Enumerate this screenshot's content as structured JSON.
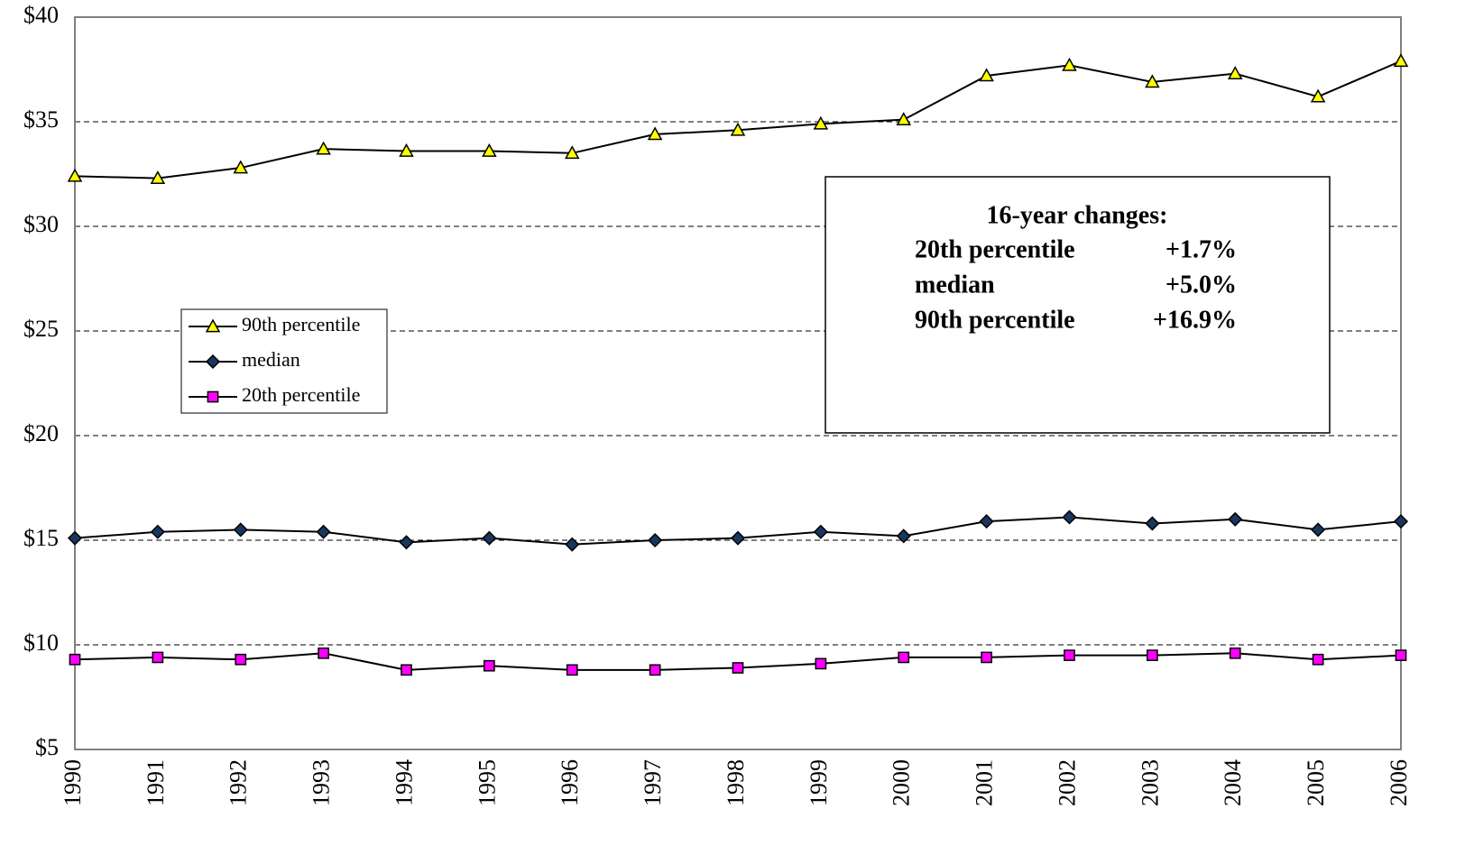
{
  "chart_data": {
    "type": "line",
    "categories": [
      "1990",
      "1991",
      "1992",
      "1993",
      "1994",
      "1995",
      "1996",
      "1997",
      "1998",
      "1999",
      "2000",
      "2001",
      "2002",
      "2003",
      "2004",
      "2005",
      "2006"
    ],
    "series": [
      {
        "name": "90th percentile",
        "color": "#ffff00",
        "marker": "triangle",
        "values": [
          32.4,
          32.3,
          32.8,
          33.7,
          33.6,
          33.6,
          33.5,
          34.4,
          34.6,
          34.9,
          35.1,
          37.2,
          37.7,
          36.9,
          37.3,
          36.2,
          37.9
        ]
      },
      {
        "name": "median",
        "color": "#17375e",
        "marker": "diamond",
        "values": [
          15.1,
          15.4,
          15.5,
          15.4,
          14.9,
          15.1,
          14.8,
          15.0,
          15.1,
          15.4,
          15.2,
          15.9,
          16.1,
          15.8,
          16.0,
          15.5,
          15.9
        ]
      },
      {
        "name": "20th percentile",
        "color": "#ff00ff",
        "marker": "square",
        "values": [
          9.3,
          9.4,
          9.3,
          9.6,
          8.8,
          9.0,
          8.8,
          8.8,
          8.9,
          9.1,
          9.4,
          9.4,
          9.5,
          9.5,
          9.6,
          9.3,
          9.5
        ]
      }
    ],
    "ylim": [
      5,
      40
    ],
    "yticks": [
      {
        "value": 5,
        "label": "$5"
      },
      {
        "value": 10,
        "label": "$10"
      },
      {
        "value": 15,
        "label": "$15"
      },
      {
        "value": 20,
        "label": "$20"
      },
      {
        "value": 25,
        "label": "$25"
      },
      {
        "value": 30,
        "label": "$30"
      },
      {
        "value": 35,
        "label": "$35"
      },
      {
        "value": 40,
        "label": "$40"
      }
    ],
    "grid": true,
    "legend": "left",
    "annotation": {
      "title": "16-year changes:",
      "rows": [
        [
          "20th percentile",
          "+1.7%"
        ],
        [
          "median",
          "+5.0%"
        ],
        [
          "90th percentile",
          "+16.9%"
        ]
      ]
    }
  }
}
